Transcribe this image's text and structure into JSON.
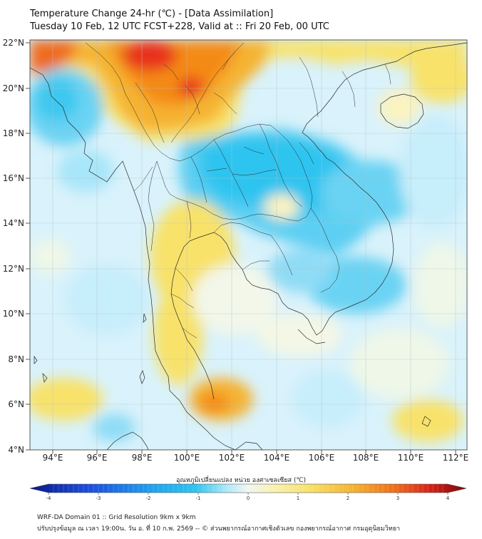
{
  "header": {
    "title_line1": "Temperature Change 24-hr (℃) - [Data Assimilation]",
    "title_line2": "Tuesday 10 Feb, 12 UTC FCST+228, Valid at :: Fri 20 Feb, 00 UTC"
  },
  "axes": {
    "y_ticks": [
      "22°N",
      "20°N",
      "18°N",
      "16°N",
      "14°N",
      "12°N",
      "10°N",
      "8°N",
      "6°N",
      "4°N"
    ],
    "x_ticks": [
      "94°E",
      "96°E",
      "98°E",
      "100°E",
      "102°E",
      "104°E",
      "106°E",
      "108°E",
      "110°E",
      "112°E"
    ]
  },
  "colorbar": {
    "title": "อุณหภูมิเปลี่ยนแปลง หน่วย องศาเซลเซียส (℃)",
    "ticks": [
      "-4",
      "-3",
      "-2",
      "-1",
      "0",
      "1",
      "2",
      "3",
      "4"
    ],
    "range": [
      -4,
      4
    ]
  },
  "footer": {
    "line1": "WRF-DA Domain 01 :: Grid Resolution 9km x 9km",
    "line2": "ปรับปรุงข้อมูล ณ เวลา 19:00น. วัน อ. ที่ 10 ก.พ. 2569 -- © ส่วนพยากรณ์อากาศเชิงตัวเลข กองพยากรณ์อากาศ กรมอุตุนิยมวิทยา"
  },
  "colors": {
    "cold": "#2fc4f0",
    "cool": "#b8ecfb",
    "neutral": "#f7f9ec",
    "warm": "#f8e26a",
    "hot": "#f48a18",
    "very_hot": "#e8321c"
  }
}
